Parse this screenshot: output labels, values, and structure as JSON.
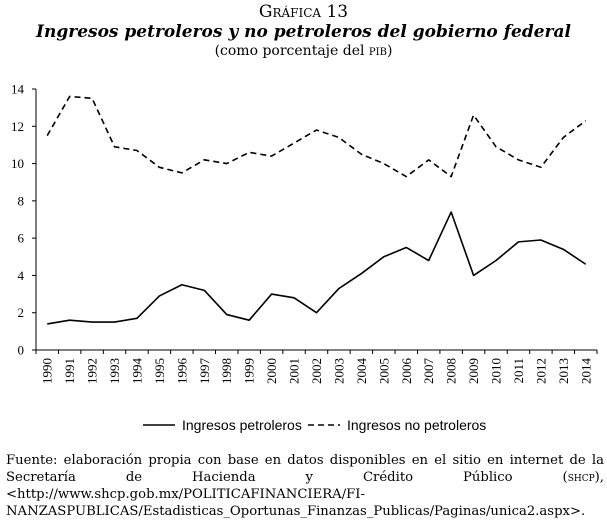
{
  "figure": {
    "label": "Gráfica 13",
    "title": "Ingresos petroleros y no petroleros del gobierno federal",
    "subtitle_before": "(como porcentaje del ",
    "subtitle_abbr": "pib",
    "subtitle_after": ")"
  },
  "source": {
    "text_a": "Fuente: elaboración propia con base en datos disponibles en el sitio en internet de la Secretaría de Hacienda y Crédito Público (",
    "abbr": "shcp",
    "text_b": "), <http://www.shcp.gob.mx/POLITICAFINANCIERA/FI-NANZASPUBLICAS/Estadisticas_Oportunas_Finanzas_Publicas/Paginas/unica2.aspx>."
  },
  "chart_data": {
    "type": "line",
    "title": "Ingresos petroleros y no petroleros del gobierno federal",
    "xlabel": "",
    "ylabel": "",
    "ylim": [
      0,
      14
    ],
    "yticks": [
      0,
      2,
      4,
      6,
      8,
      10,
      12,
      14
    ],
    "grid": false,
    "legend_position": "bottom",
    "categories": [
      "1990",
      "1991",
      "1992",
      "1993",
      "1994",
      "1995",
      "1996",
      "1997",
      "1998",
      "1999",
      "2000",
      "2001",
      "2002",
      "2003",
      "2004",
      "2005",
      "2006",
      "2007",
      "2008",
      "2009",
      "2010",
      "2011",
      "2012",
      "2013",
      "2014"
    ],
    "series": [
      {
        "name": "Ingresos petroleros",
        "style": "solid",
        "values": [
          1.4,
          1.6,
          1.5,
          1.5,
          1.7,
          2.9,
          3.5,
          3.2,
          1.9,
          1.6,
          3.0,
          2.8,
          2.0,
          3.3,
          4.1,
          5.0,
          5.5,
          4.8,
          7.4,
          4.0,
          4.8,
          5.8,
          5.9,
          5.4,
          4.6
        ]
      },
      {
        "name": "Ingresos no petroleros",
        "style": "dashed",
        "values": [
          11.5,
          13.6,
          13.5,
          10.9,
          10.7,
          9.8,
          9.5,
          10.2,
          10.0,
          10.6,
          10.4,
          11.1,
          11.8,
          11.4,
          10.5,
          10.0,
          9.3,
          10.2,
          9.3,
          12.6,
          10.9,
          10.2,
          9.8,
          11.4,
          12.3
        ]
      }
    ],
    "colors": {
      "line": "#000000",
      "axis": "#000000"
    }
  }
}
